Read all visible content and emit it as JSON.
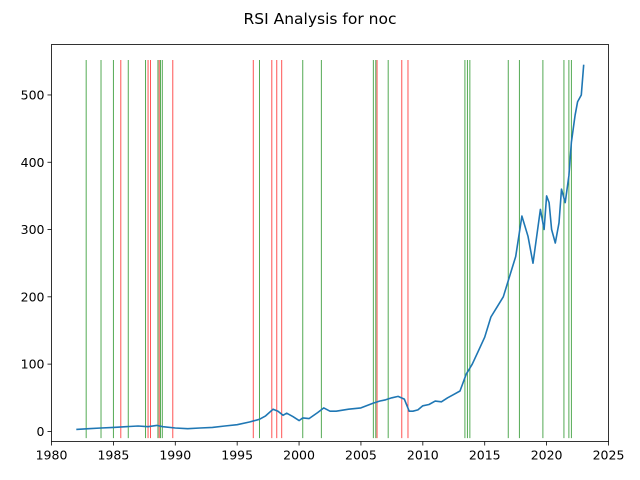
{
  "chart_data": {
    "type": "line",
    "title": "RSI Analysis for noc",
    "xlabel": "",
    "ylabel": "",
    "xlim": [
      1980,
      2025
    ],
    "ylim": [
      -15,
      575
    ],
    "x_ticks": [
      1980,
      1985,
      1990,
      1995,
      2000,
      2005,
      2010,
      2015,
      2020,
      2025
    ],
    "y_ticks": [
      0,
      100,
      200,
      300,
      400,
      500
    ],
    "grid": false,
    "series": [
      {
        "name": "",
        "color": "#1f77b4",
        "x": [
          1982.0,
          1983.0,
          1984.0,
          1985.0,
          1986.0,
          1987.0,
          1987.8,
          1988.5,
          1989.0,
          1990.0,
          1991.0,
          1992.0,
          1993.0,
          1994.0,
          1995.0,
          1996.0,
          1996.8,
          1997.3,
          1997.9,
          1998.3,
          1998.7,
          1999.0,
          1999.5,
          2000.0,
          2000.3,
          2000.8,
          2001.5,
          2002.0,
          2002.5,
          2003.0,
          2004.0,
          2005.0,
          2006.0,
          2006.5,
          2007.0,
          2007.5,
          2008.0,
          2008.5,
          2008.9,
          2009.2,
          2009.6,
          2010.0,
          2010.5,
          2011.0,
          2011.5,
          2012.0,
          2012.5,
          2013.0,
          2013.5,
          2014.0,
          2014.5,
          2015.0,
          2015.5,
          2016.0,
          2016.5,
          2017.0,
          2017.5,
          2018.0,
          2018.5,
          2018.9,
          2019.2,
          2019.5,
          2019.8,
          2020.0,
          2020.2,
          2020.4,
          2020.7,
          2021.0,
          2021.2,
          2021.5,
          2021.8,
          2022.0,
          2022.3,
          2022.5,
          2022.8,
          2023.0
        ],
        "values": [
          3,
          4,
          5,
          6,
          7,
          8,
          7,
          9,
          7,
          5,
          4,
          5,
          6,
          8,
          10,
          14,
          18,
          23,
          33,
          30,
          24,
          27,
          22,
          16,
          20,
          19,
          28,
          35,
          30,
          30,
          33,
          35,
          42,
          45,
          47,
          50,
          52,
          48,
          30,
          30,
          32,
          38,
          40,
          45,
          44,
          50,
          55,
          60,
          85,
          100,
          120,
          140,
          170,
          185,
          200,
          230,
          260,
          320,
          290,
          250,
          290,
          330,
          300,
          350,
          340,
          300,
          280,
          310,
          360,
          340,
          380,
          430,
          470,
          490,
          500,
          545
        ]
      }
    ],
    "buy_signals_green": [
      1982.8,
      1984.0,
      1985.0,
      1986.2,
      1987.6,
      1988.6,
      1988.8,
      1988.95,
      1996.8,
      2000.3,
      2001.8,
      2006.0,
      2006.2,
      2007.2,
      2013.4,
      2013.6,
      2013.8,
      2016.9,
      2017.8,
      2019.7,
      2021.4,
      2021.8,
      2022.0
    ],
    "sell_signals_red": [
      1985.6,
      1987.8,
      1988.0,
      1988.7,
      1989.8,
      1996.3,
      1997.8,
      1998.2,
      1998.6,
      2006.3,
      2008.3,
      2008.8
    ]
  }
}
